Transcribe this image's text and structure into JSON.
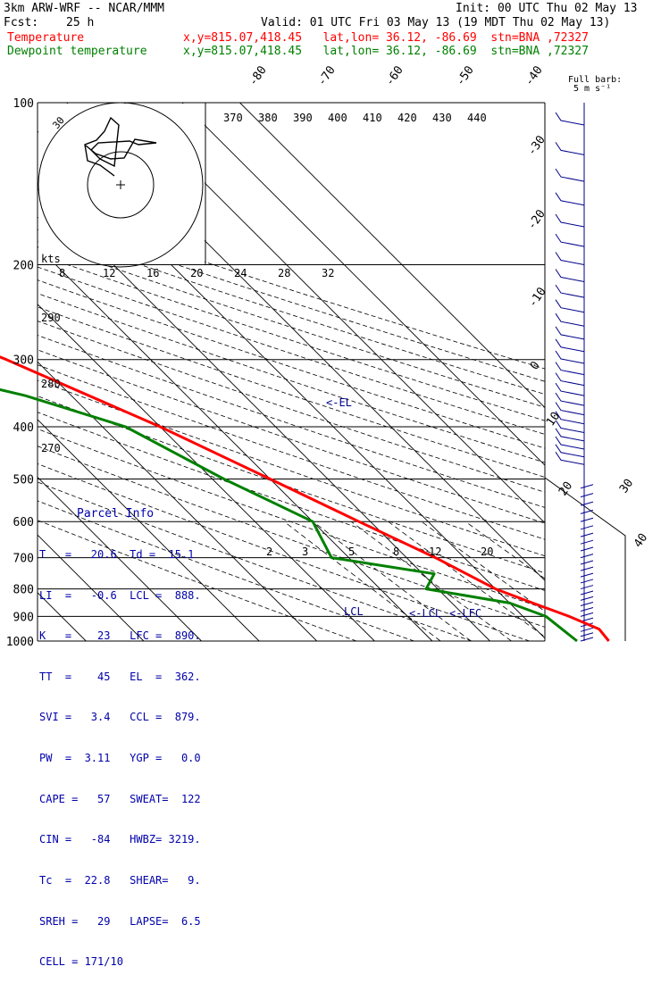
{
  "header": {
    "model": "3km ARW-WRF -- NCAR/MMM",
    "init": "Init: 00 UTC Thu 02 May 13",
    "fcst_label": "Fcst:",
    "fcst_value": "25 h",
    "valid": "Valid: 01 UTC Fri 03 May 13 (19 MDT Thu 02 May 13)",
    "temp_label": "Temperature",
    "temp_loc": "x,y=815.07,418.45   lat,lon= 36.12, -86.69  stn=BNA ,72327",
    "dew_label": "Dewpoint temperature",
    "dew_loc": "x,y=815.07,418.45   lat,lon= 36.12, -86.69  stn=BNA ,72327"
  },
  "barb_legend": [
    "Full barb:",
    "5 m s⁻¹"
  ],
  "colors": {
    "temperature": "#ff0000",
    "dewpoint": "#008000",
    "info": "#0000aa"
  },
  "parcel_info": {
    "title": "Parcel Info",
    "rows": [
      "T   =   20.6  Td =  15.1",
      "LI  =   -0.6  LCL =  888.",
      "K   =    23   LFC =  890.",
      "TT  =    45   EL  =  362.",
      "SVI =   3.4   CCL =  879.",
      "PW  =  3.11   YGP =   0.0",
      "CAPE =   57   SWEAT=  122",
      "CIN =   -84   HWBZ= 3219.",
      "Tc  =  22.8   SHEAR=   9.",
      "SREH =   29   LAPSE=  6.5",
      "CELL = 171/10"
    ]
  },
  "chart_data": {
    "type": "line",
    "title": "",
    "xlabel": "",
    "ylabel": "",
    "skew_temperature_labels": [
      "-80",
      "-70",
      "-60",
      "-50",
      "-40",
      "-30",
      "-20",
      "-10",
      "0",
      "10",
      "20",
      "30",
      "40"
    ],
    "pressure_levels": [
      100,
      200,
      300,
      400,
      500,
      600,
      700,
      800,
      900,
      1000
    ],
    "theta_labels": [
      "370",
      "380",
      "390",
      "400",
      "410",
      "420",
      "430",
      "440"
    ],
    "dry_adiabat_labels": [
      "290",
      "280",
      "270"
    ],
    "mixing_ratio_labels": [
      "2",
      "3",
      "5",
      "8",
      "12",
      "20"
    ],
    "hodograph_speed_labels": [
      "8",
      "12",
      "16",
      "20",
      "24",
      "28",
      "32"
    ],
    "hodograph_units": "kts",
    "hodograph_ring_label": "30",
    "level_markers": [
      "<-EL",
      "LCL",
      "<-LCL",
      "<-LFC",
      "CCL"
    ],
    "series": [
      {
        "name": "Temperature",
        "values": [
          [
            100,
            -62
          ],
          [
            150,
            -58
          ],
          [
            200,
            -57
          ],
          [
            250,
            -46
          ],
          [
            300,
            -35
          ],
          [
            400,
            -20
          ],
          [
            500,
            -10
          ],
          [
            600,
            -2
          ],
          [
            700,
            5
          ],
          [
            800,
            10
          ],
          [
            850,
            14
          ],
          [
            900,
            18
          ],
          [
            950,
            21
          ],
          [
            1000,
            20.6
          ]
        ]
      },
      {
        "name": "Dewpoint temperature",
        "values": [
          [
            100,
            -83
          ],
          [
            150,
            -88
          ],
          [
            200,
            -84
          ],
          [
            250,
            -78
          ],
          [
            300,
            -58
          ],
          [
            350,
            -38
          ],
          [
            400,
            -26
          ],
          [
            500,
            -18
          ],
          [
            600,
            -10
          ],
          [
            700,
            -13
          ],
          [
            750,
            2
          ],
          [
            800,
            -2
          ],
          [
            850,
            10
          ],
          [
            900,
            14
          ],
          [
            1000,
            15.1
          ]
        ]
      }
    ]
  }
}
